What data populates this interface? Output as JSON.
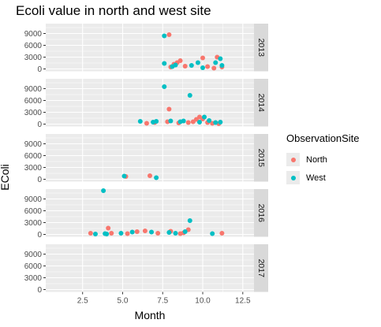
{
  "chart_data": {
    "type": "scatter",
    "title": "Ecoli value in north and west site",
    "xlabel": "Month",
    "ylabel": "EColi",
    "xlim": [
      0.2,
      13.2
    ],
    "ylim": [
      -600,
      11500
    ],
    "x_ticks": [
      2.5,
      5.0,
      7.5,
      10.0,
      12.5
    ],
    "x_tick_labels": [
      "2.5",
      "5.0",
      "7.5",
      "10.0",
      "12.5"
    ],
    "y_ticks": [
      0,
      3000,
      6000,
      9000
    ],
    "y_tick_labels": [
      "0",
      "3000",
      "6000",
      "9000"
    ],
    "facet_by": "Year",
    "facets": [
      "2013",
      "2014",
      "2015",
      "2016",
      "2017"
    ],
    "legend": {
      "title": "ObservationSite",
      "placement": "right",
      "entries": [
        {
          "name": "North",
          "color": "#F8766D"
        },
        {
          "name": "West",
          "color": "#00BFC4"
        }
      ]
    },
    "series": [
      {
        "name": "North",
        "color": "#F8766D",
        "points": [
          {
            "facet": "2013",
            "x": 7.9,
            "y": 8700
          },
          {
            "facet": "2013",
            "x": 8.0,
            "y": 500
          },
          {
            "facet": "2013",
            "x": 8.2,
            "y": 1200
          },
          {
            "facet": "2013",
            "x": 8.4,
            "y": 1600
          },
          {
            "facet": "2013",
            "x": 8.6,
            "y": 2100
          },
          {
            "facet": "2013",
            "x": 8.9,
            "y": 700
          },
          {
            "facet": "2013",
            "x": 10.0,
            "y": 2800
          },
          {
            "facet": "2013",
            "x": 10.3,
            "y": 600
          },
          {
            "facet": "2013",
            "x": 10.7,
            "y": 200
          },
          {
            "facet": "2013",
            "x": 10.9,
            "y": 3000
          },
          {
            "facet": "2013",
            "x": 11.2,
            "y": 500
          },
          {
            "facet": "2014",
            "x": 6.5,
            "y": 200
          },
          {
            "facet": "2014",
            "x": 7.0,
            "y": 400
          },
          {
            "facet": "2014",
            "x": 7.8,
            "y": 600
          },
          {
            "facet": "2014",
            "x": 7.9,
            "y": 3800
          },
          {
            "facet": "2014",
            "x": 8.5,
            "y": 300
          },
          {
            "facet": "2014",
            "x": 9.1,
            "y": 400
          },
          {
            "facet": "2014",
            "x": 9.4,
            "y": 600
          },
          {
            "facet": "2014",
            "x": 9.6,
            "y": 1200
          },
          {
            "facet": "2014",
            "x": 9.8,
            "y": 1800
          },
          {
            "facet": "2014",
            "x": 10.0,
            "y": 1300
          },
          {
            "facet": "2014",
            "x": 10.3,
            "y": 400
          },
          {
            "facet": "2014",
            "x": 10.6,
            "y": 200
          },
          {
            "facet": "2014",
            "x": 11.0,
            "y": 100
          },
          {
            "facet": "2015",
            "x": 5.2,
            "y": 700
          },
          {
            "facet": "2015",
            "x": 6.7,
            "y": 900
          },
          {
            "facet": "2016",
            "x": 3.0,
            "y": 300
          },
          {
            "facet": "2016",
            "x": 4.1,
            "y": 1600
          },
          {
            "facet": "2016",
            "x": 4.3,
            "y": 300
          },
          {
            "facet": "2016",
            "x": 5.3,
            "y": 200
          },
          {
            "facet": "2016",
            "x": 5.9,
            "y": 700
          },
          {
            "facet": "2016",
            "x": 6.4,
            "y": 900
          },
          {
            "facet": "2016",
            "x": 7.2,
            "y": 300
          },
          {
            "facet": "2016",
            "x": 8.0,
            "y": 800
          },
          {
            "facet": "2016",
            "x": 8.6,
            "y": 200
          },
          {
            "facet": "2016",
            "x": 8.8,
            "y": 400
          },
          {
            "facet": "2016",
            "x": 9.1,
            "y": 1200
          },
          {
            "facet": "2016",
            "x": 11.2,
            "y": 300
          }
        ]
      },
      {
        "name": "West",
        "color": "#00BFC4",
        "points": [
          {
            "facet": "2013",
            "x": 7.6,
            "y": 8400
          },
          {
            "facet": "2013",
            "x": 7.6,
            "y": 1400
          },
          {
            "facet": "2013",
            "x": 8.1,
            "y": 600
          },
          {
            "facet": "2013",
            "x": 8.3,
            "y": 1000
          },
          {
            "facet": "2013",
            "x": 9.3,
            "y": 900
          },
          {
            "facet": "2013",
            "x": 9.7,
            "y": 1600
          },
          {
            "facet": "2013",
            "x": 10.0,
            "y": 300
          },
          {
            "facet": "2013",
            "x": 10.8,
            "y": 1600
          },
          {
            "facet": "2013",
            "x": 11.1,
            "y": 2600
          },
          {
            "facet": "2013",
            "x": 11.2,
            "y": 900
          },
          {
            "facet": "2014",
            "x": 6.1,
            "y": 700
          },
          {
            "facet": "2014",
            "x": 6.9,
            "y": 500
          },
          {
            "facet": "2014",
            "x": 7.1,
            "y": 700
          },
          {
            "facet": "2014",
            "x": 7.6,
            "y": 9500
          },
          {
            "facet": "2014",
            "x": 8.0,
            "y": 800
          },
          {
            "facet": "2014",
            "x": 8.6,
            "y": 600
          },
          {
            "facet": "2014",
            "x": 8.8,
            "y": 800
          },
          {
            "facet": "2014",
            "x": 9.2,
            "y": 7300
          },
          {
            "facet": "2014",
            "x": 9.8,
            "y": 500
          },
          {
            "facet": "2014",
            "x": 10.1,
            "y": 1800
          },
          {
            "facet": "2014",
            "x": 10.4,
            "y": 900
          },
          {
            "facet": "2014",
            "x": 10.8,
            "y": 400
          },
          {
            "facet": "2014",
            "x": 11.1,
            "y": 500
          },
          {
            "facet": "2015",
            "x": 5.1,
            "y": 800
          },
          {
            "facet": "2015",
            "x": 7.1,
            "y": 400
          },
          {
            "facet": "2016",
            "x": 3.3,
            "y": 100
          },
          {
            "facet": "2016",
            "x": 3.8,
            "y": 11100
          },
          {
            "facet": "2016",
            "x": 3.9,
            "y": 200
          },
          {
            "facet": "2016",
            "x": 4.0,
            "y": 100
          },
          {
            "facet": "2016",
            "x": 4.9,
            "y": 300
          },
          {
            "facet": "2016",
            "x": 5.6,
            "y": 600
          },
          {
            "facet": "2016",
            "x": 6.8,
            "y": 600
          },
          {
            "facet": "2016",
            "x": 7.9,
            "y": 500
          },
          {
            "facet": "2016",
            "x": 8.3,
            "y": 300
          },
          {
            "facet": "2016",
            "x": 8.9,
            "y": 700
          },
          {
            "facet": "2016",
            "x": 9.2,
            "y": 3500
          },
          {
            "facet": "2016",
            "x": 10.6,
            "y": 200
          }
        ]
      }
    ]
  }
}
